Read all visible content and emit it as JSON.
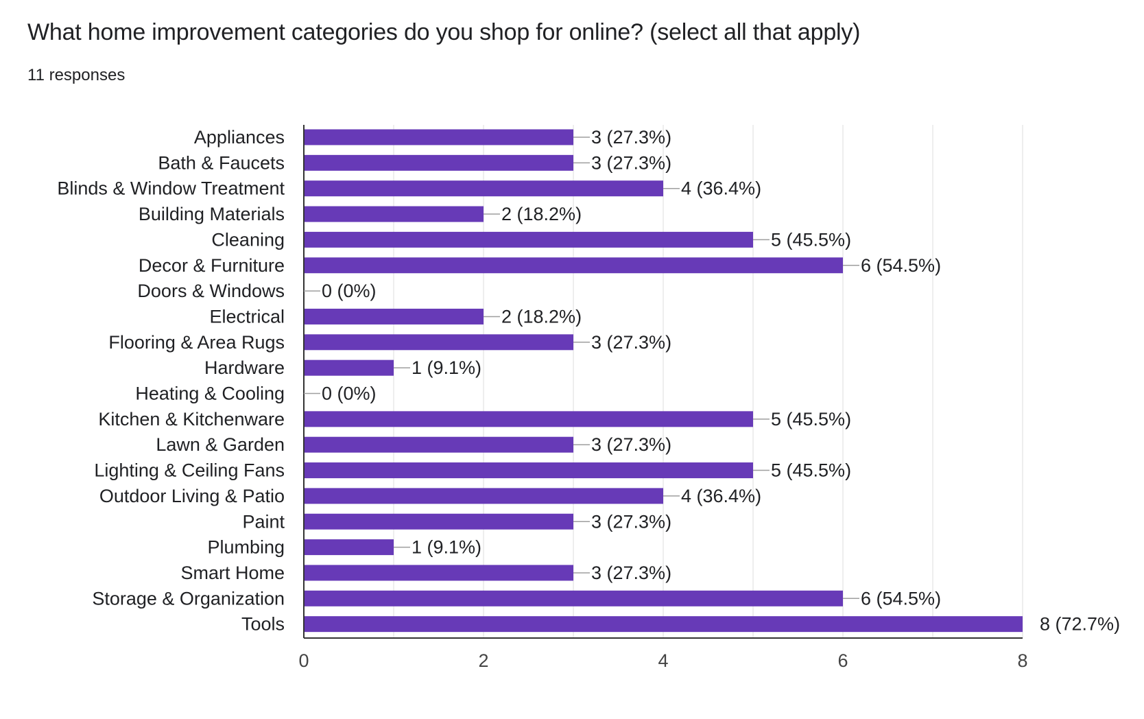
{
  "question": {
    "title": "What home improvement categories do you shop for online? (select all that apply)",
    "responses": "11 responses"
  },
  "colors": {
    "bar": "#673ab7",
    "grid": "#e8e8e8",
    "axis": "#333333",
    "leader": "#9e9e9e",
    "text": "#202124"
  },
  "chart_data": {
    "type": "bar",
    "orientation": "horizontal",
    "title": "What home improvement categories do you shop for online? (select all that apply)",
    "subtitle": "11 responses",
    "xlabel": "",
    "ylabel": "",
    "xlim": [
      0,
      8
    ],
    "xticks": [
      0,
      2,
      4,
      6,
      8
    ],
    "grid": "vertical gridlines at every 1 unit",
    "categories": [
      "Appliances",
      "Bath & Faucets",
      "Blinds & Window Treatment",
      "Building Materials",
      "Cleaning",
      "Decor & Furniture",
      "Doors & Windows",
      "Electrical",
      "Flooring & Area Rugs",
      "Hardware",
      "Heating & Cooling",
      "Kitchen & Kitchenware",
      "Lawn & Garden",
      "Lighting & Ceiling Fans",
      "Outdoor Living & Patio",
      "Paint",
      "Plumbing",
      "Smart Home",
      "Storage & Organization",
      "Tools"
    ],
    "values": [
      3,
      3,
      4,
      2,
      5,
      6,
      0,
      2,
      3,
      1,
      0,
      5,
      3,
      5,
      4,
      3,
      1,
      3,
      6,
      8
    ],
    "data_labels": [
      "3 (27.3%)",
      "3 (27.3%)",
      "4 (36.4%)",
      "2 (18.2%)",
      "5 (45.5%)",
      "6 (54.5%)",
      "0 (0%)",
      "2 (18.2%)",
      "3 (27.3%)",
      "1 (9.1%)",
      "0 (0%)",
      "5 (45.5%)",
      "3 (27.3%)",
      "5 (45.5%)",
      "4 (36.4%)",
      "3 (27.3%)",
      "1 (9.1%)",
      "3 (27.3%)",
      "6 (54.5%)",
      "8 (72.7%)"
    ]
  }
}
